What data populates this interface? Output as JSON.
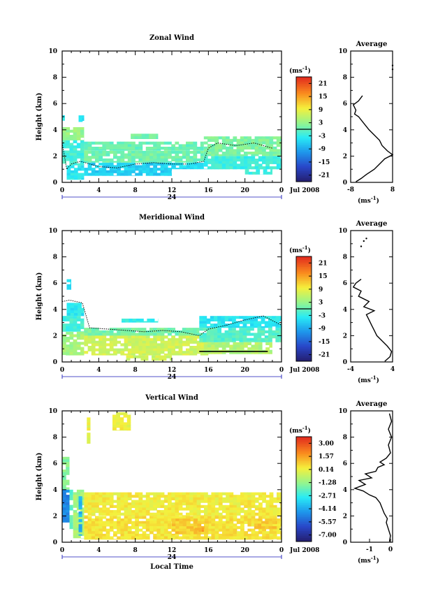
{
  "chart_data": [
    {
      "type": "heatmap",
      "title": "Zonal Wind",
      "ylabel": "Height (km)",
      "xlim": [
        0,
        24
      ],
      "ylim": [
        0,
        10
      ],
      "x_tick_labels": [
        "0",
        "4",
        "8",
        "12",
        "16",
        "20",
        "0"
      ],
      "y_tick_labels": [
        "0",
        "2",
        "4",
        "6",
        "8",
        "10"
      ],
      "day_label": "24",
      "date_label": "Jul 2008",
      "colorbar": {
        "unit": "(ms",
        "unit_sup": "-1",
        "unit_close": ")",
        "tick_labels": [
          "21",
          "15",
          "9",
          "3",
          "-3",
          "-9",
          "-15",
          "-21"
        ],
        "range": [
          -24,
          24
        ]
      },
      "field": {
        "blocks": [
          {
            "x": [
              0.0,
              0.3
            ],
            "y": [
              4.7,
              5.3
            ],
            "v": -3.5
          },
          {
            "x": [
              1.8,
              2.4
            ],
            "y": [
              4.6,
              5.1
            ],
            "v": -5
          },
          {
            "x": [
              0.0,
              2.4
            ],
            "y": [
              3.2,
              4.2
            ],
            "v": 3
          },
          {
            "x": [
              0.0,
              2.4
            ],
            "y": [
              1.3,
              3.2
            ],
            "v": -2
          },
          {
            "x": [
              0.5,
              2.4
            ],
            "y": [
              0.2,
              1.3
            ],
            "v": -4
          },
          {
            "x": [
              7.5,
              10.5
            ],
            "y": [
              3.3,
              3.7
            ],
            "v": 1
          },
          {
            "x": [
              2.4,
              15.5
            ],
            "y": [
              2.4,
              3.1
            ],
            "v": 0.3
          },
          {
            "x": [
              2.4,
              15.5
            ],
            "y": [
              1.5,
              2.4
            ],
            "v": 0.8
          },
          {
            "x": [
              2.4,
              12.0
            ],
            "y": [
              0.5,
              1.5
            ],
            "v": -6
          },
          {
            "x": [
              12.0,
              15.5
            ],
            "y": [
              1.0,
              1.5
            ],
            "v": -5
          },
          {
            "x": [
              15.5,
              24.0
            ],
            "y": [
              2.0,
              3.5
            ],
            "v": 1.5
          },
          {
            "x": [
              15.5,
              24.0
            ],
            "y": [
              1.0,
              2.0
            ],
            "v": -2.5
          },
          {
            "x": [
              20.0,
              23.0
            ],
            "y": [
              0.6,
              1.0
            ],
            "v": -2.5
          }
        ],
        "contour_y": [
          [
            0.0,
            3.0
          ],
          [
            0.5,
            1.0
          ],
          [
            1.0,
            1.4
          ],
          [
            2.0,
            1.6
          ],
          [
            4.0,
            1.2
          ],
          [
            6.0,
            1.1
          ],
          [
            8.0,
            1.4
          ],
          [
            10.0,
            1.5
          ],
          [
            12.0,
            1.4
          ],
          [
            14.0,
            1.4
          ],
          [
            15.5,
            1.6
          ],
          [
            16.0,
            2.6
          ],
          [
            17.0,
            3.0
          ],
          [
            19.0,
            2.8
          ],
          [
            21.0,
            3.0
          ],
          [
            23.0,
            2.6
          ]
        ]
      },
      "profile": {
        "title": "Average",
        "xlim": [
          -8,
          8
        ],
        "x_tick_labels": [
          "-8",
          "8"
        ],
        "y_tick_labels": [
          "0",
          "2",
          "4",
          "6",
          "8",
          "10"
        ],
        "xlabel": "(ms",
        "xlabel_sup": "-1",
        "xlabel_close": ")",
        "points": [
          [
            -6,
            0.05
          ],
          [
            -4,
            0.3
          ],
          [
            -2,
            0.6
          ],
          [
            1,
            1.0
          ],
          [
            3,
            1.4
          ],
          [
            5,
            1.8
          ],
          [
            8,
            2.1
          ],
          [
            6,
            2.4
          ],
          [
            4,
            2.8
          ],
          [
            3,
            3.2
          ],
          [
            1,
            3.6
          ],
          [
            -1,
            4.0
          ],
          [
            -3,
            4.5
          ],
          [
            -5,
            5.0
          ],
          [
            -6.5,
            5.2
          ],
          [
            -6,
            5.5
          ],
          [
            -7,
            5.9
          ],
          [
            -5,
            6.2
          ],
          [
            -3.5,
            6.6
          ]
        ],
        "extra_points": [
          [
            8,
            8.6
          ],
          [
            8,
            8.9
          ]
        ]
      }
    },
    {
      "type": "heatmap",
      "title": "Meridional Wind",
      "ylabel": "Height (km)",
      "xlim": [
        0,
        24
      ],
      "ylim": [
        0,
        10
      ],
      "x_tick_labels": [
        "0",
        "4",
        "8",
        "12",
        "16",
        "20",
        "0"
      ],
      "y_tick_labels": [
        "0",
        "2",
        "4",
        "6",
        "8",
        "10"
      ],
      "day_label": "24",
      "date_label": "Jul 2008",
      "colorbar": {
        "unit": "(ms",
        "unit_sup": "-1",
        "unit_close": ")",
        "tick_labels": [
          "21",
          "15",
          "9",
          "3",
          "-3",
          "-9",
          "-15",
          "-21"
        ],
        "range": [
          -24,
          24
        ]
      },
      "field": {
        "blocks": [
          {
            "x": [
              0.5,
              1.0
            ],
            "y": [
              5.5,
              6.3
            ],
            "v": -5
          },
          {
            "x": [
              0.5,
              2.4
            ],
            "y": [
              3.5,
              4.5
            ],
            "v": -4
          },
          {
            "x": [
              0.0,
              2.4
            ],
            "y": [
              2.3,
              3.5
            ],
            "v": -2
          },
          {
            "x": [
              0.0,
              2.4
            ],
            "y": [
              0.5,
              2.3
            ],
            "v": 4
          },
          {
            "x": [
              6.5,
              10.5
            ],
            "y": [
              3.0,
              3.3
            ],
            "v": -3
          },
          {
            "x": [
              2.4,
              15.0
            ],
            "y": [
              2.0,
              2.6
            ],
            "v": 1
          },
          {
            "x": [
              2.4,
              16.0
            ],
            "y": [
              0.5,
              2.0
            ],
            "v": 7
          },
          {
            "x": [
              7.0,
              12.0
            ],
            "y": [
              0.1,
              0.5
            ],
            "v": 7
          },
          {
            "x": [
              15.0,
              24.0
            ],
            "y": [
              2.6,
              3.5
            ],
            "v": -4
          },
          {
            "x": [
              15.0,
              24.0
            ],
            "y": [
              1.5,
              2.6
            ],
            "v": -1
          },
          {
            "x": [
              15.5,
              23.0
            ],
            "y": [
              0.6,
              1.5
            ],
            "v": 5
          }
        ],
        "contour_y": [
          [
            0.0,
            4.6
          ],
          [
            0.8,
            4.7
          ],
          [
            2.2,
            4.5
          ],
          [
            3.0,
            2.6
          ],
          [
            5.0,
            2.5
          ],
          [
            7.0,
            2.4
          ],
          [
            9.0,
            2.3
          ],
          [
            11.0,
            2.4
          ],
          [
            13.0,
            2.3
          ],
          [
            15.0,
            2.0
          ],
          [
            16.0,
            2.5
          ],
          [
            18.0,
            2.8
          ],
          [
            20.0,
            3.2
          ],
          [
            22.0,
            3.5
          ],
          [
            24.0,
            2.8
          ]
        ],
        "hline": {
          "x": [
            15.0,
            22.5
          ],
          "y": 0.8
        }
      },
      "profile": {
        "title": "Average",
        "xlim": [
          -4,
          4
        ],
        "x_tick_labels": [
          "-4",
          "4"
        ],
        "y_tick_labels": [
          "0",
          "2",
          "4",
          "6",
          "8",
          "10"
        ],
        "xlabel": "(ms",
        "xlabel_sup": "-1",
        "xlabel_close": ")",
        "points": [
          [
            2.5,
            0.05
          ],
          [
            3.5,
            0.4
          ],
          [
            3.8,
            0.8
          ],
          [
            3.0,
            1.2
          ],
          [
            2.0,
            1.6
          ],
          [
            1.0,
            2.0
          ],
          [
            0.5,
            2.4
          ],
          [
            0.0,
            2.8
          ],
          [
            -0.5,
            3.2
          ],
          [
            -1.0,
            3.6
          ],
          [
            0.5,
            3.9
          ],
          [
            -1.5,
            4.2
          ],
          [
            -0.5,
            4.6
          ],
          [
            -2.5,
            5.0
          ],
          [
            -2.0,
            5.4
          ],
          [
            -3.5,
            5.7
          ],
          [
            -3.0,
            6.0
          ],
          [
            -2.0,
            6.3
          ]
        ],
        "extra_points": [
          [
            -2.0,
            8.8
          ],
          [
            -1.5,
            9.2
          ],
          [
            -1.0,
            9.4
          ]
        ]
      }
    },
    {
      "type": "heatmap",
      "title": "Vertical Wind",
      "ylabel": "Height (km)",
      "xlabel": "Local Time",
      "xlim": [
        0,
        24
      ],
      "ylim": [
        0,
        10
      ],
      "x_tick_labels": [
        "0",
        "4",
        "8",
        "12",
        "16",
        "20",
        "0"
      ],
      "y_tick_labels": [
        "0",
        "2",
        "4",
        "6",
        "8",
        "10"
      ],
      "day_label": "24",
      "date_label": "Jul 2008",
      "colorbar": {
        "unit": "(ms",
        "unit_sup": "-1",
        "unit_close": ")",
        "tick_labels": [
          "3.00",
          "1.57",
          "0.14",
          "-1.28",
          "-2.71",
          "-4.14",
          "-5.57",
          "-7.00"
        ],
        "range": [
          -8,
          4
        ]
      },
      "field": {
        "blocks": [
          {
            "x": [
              2.7,
              3.1
            ],
            "y": [
              7.5,
              9.5
            ],
            "v": 0.2
          },
          {
            "x": [
              5.5,
              7.5
            ],
            "y": [
              8.5,
              9.9
            ],
            "v": 0.3
          },
          {
            "x": [
              0.0,
              0.8
            ],
            "y": [
              4.0,
              6.5
            ],
            "v": -1.5
          },
          {
            "x": [
              0.0,
              0.8
            ],
            "y": [
              1.5,
              4.0
            ],
            "v": -5
          },
          {
            "x": [
              0.8,
              1.2
            ],
            "y": [
              1.0,
              4.0
            ],
            "v": -2
          },
          {
            "x": [
              1.2,
              2.4
            ],
            "y": [
              0.3,
              4.0
            ],
            "v": -1
          },
          {
            "x": [
              1.8,
              2.2
            ],
            "y": [
              0.5,
              3.5
            ],
            "v": -4
          },
          {
            "x": [
              2.4,
              24.0
            ],
            "y": [
              2.0,
              3.8
            ],
            "v": 0.4
          },
          {
            "x": [
              2.4,
              24.0
            ],
            "y": [
              0.2,
              2.0
            ],
            "v": 0.6
          },
          {
            "x": [
              12.0,
              16.0
            ],
            "y": [
              0.6,
              1.8
            ],
            "v": 1.0
          },
          {
            "x": [
              14.5,
              15.5
            ],
            "y": [
              0.8,
              1.1
            ],
            "v": 1.8
          },
          {
            "x": [
              21.0,
              23.5
            ],
            "y": [
              1.0,
              1.8
            ],
            "v": 1.0
          }
        ]
      },
      "profile": {
        "title": "Average",
        "xlim": [
          -1.9,
          0.1
        ],
        "x_tick_labels": [
          "-1",
          "0"
        ],
        "y_tick_labels": [
          "0",
          "2",
          "4",
          "6",
          "8",
          "10"
        ],
        "xlabel": "(ms",
        "xlabel_sup": "-1",
        "xlabel_close": ")",
        "points": [
          [
            -0.05,
            0.05
          ],
          [
            0.0,
            0.5
          ],
          [
            -0.1,
            1.0
          ],
          [
            -0.2,
            1.5
          ],
          [
            -0.15,
            1.8
          ],
          [
            -0.3,
            2.2
          ],
          [
            -0.4,
            2.6
          ],
          [
            -0.5,
            3.0
          ],
          [
            -0.7,
            3.4
          ],
          [
            -1.0,
            3.6
          ],
          [
            -1.3,
            3.9
          ],
          [
            -1.7,
            4.1
          ],
          [
            -1.2,
            4.4
          ],
          [
            -1.5,
            4.7
          ],
          [
            -0.9,
            4.9
          ],
          [
            -1.2,
            5.2
          ],
          [
            -0.7,
            5.4
          ],
          [
            -0.6,
            5.7
          ],
          [
            -0.3,
            5.9
          ],
          [
            -0.5,
            6.1
          ],
          [
            -0.2,
            6.4
          ],
          [
            0.0,
            6.8
          ],
          [
            -0.1,
            7.4
          ],
          [
            0.05,
            8.0
          ],
          [
            -0.1,
            8.6
          ],
          [
            0.05,
            9.2
          ],
          [
            -0.05,
            9.8
          ]
        ]
      }
    }
  ]
}
